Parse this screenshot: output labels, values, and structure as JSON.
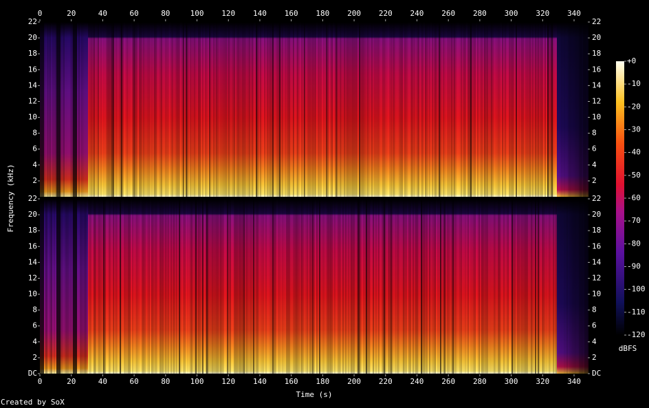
{
  "chart_data": {
    "type": "spectrogram",
    "x_label": "Time (s)",
    "y_label": "Frequency (kHz)",
    "xlim": [
      0,
      348.75
    ],
    "xticks": [
      0,
      20,
      40,
      60,
      80,
      100,
      120,
      140,
      160,
      180,
      200,
      220,
      240,
      260,
      280,
      300,
      320,
      340
    ],
    "channels": [
      {
        "ylim": [
          0,
          22
        ],
        "yticks": [
          2,
          4,
          6,
          8,
          10,
          12,
          14,
          16,
          18,
          20,
          22
        ]
      },
      {
        "ylim": [
          0,
          22
        ],
        "yticks": [
          {
            "value": 0,
            "label": "DC"
          },
          2,
          4,
          6,
          8,
          10,
          12,
          14,
          16,
          18,
          20,
          22
        ]
      }
    ],
    "colorbar": {
      "label": "dBFS",
      "clim": [
        -120,
        0
      ],
      "ticks": [
        {
          "value": 0,
          "label": "+0"
        },
        -10,
        -20,
        -30,
        -40,
        -50,
        -60,
        -70,
        -80,
        -90,
        -100,
        -110,
        -120
      ]
    },
    "footer": "Created by SoX"
  }
}
